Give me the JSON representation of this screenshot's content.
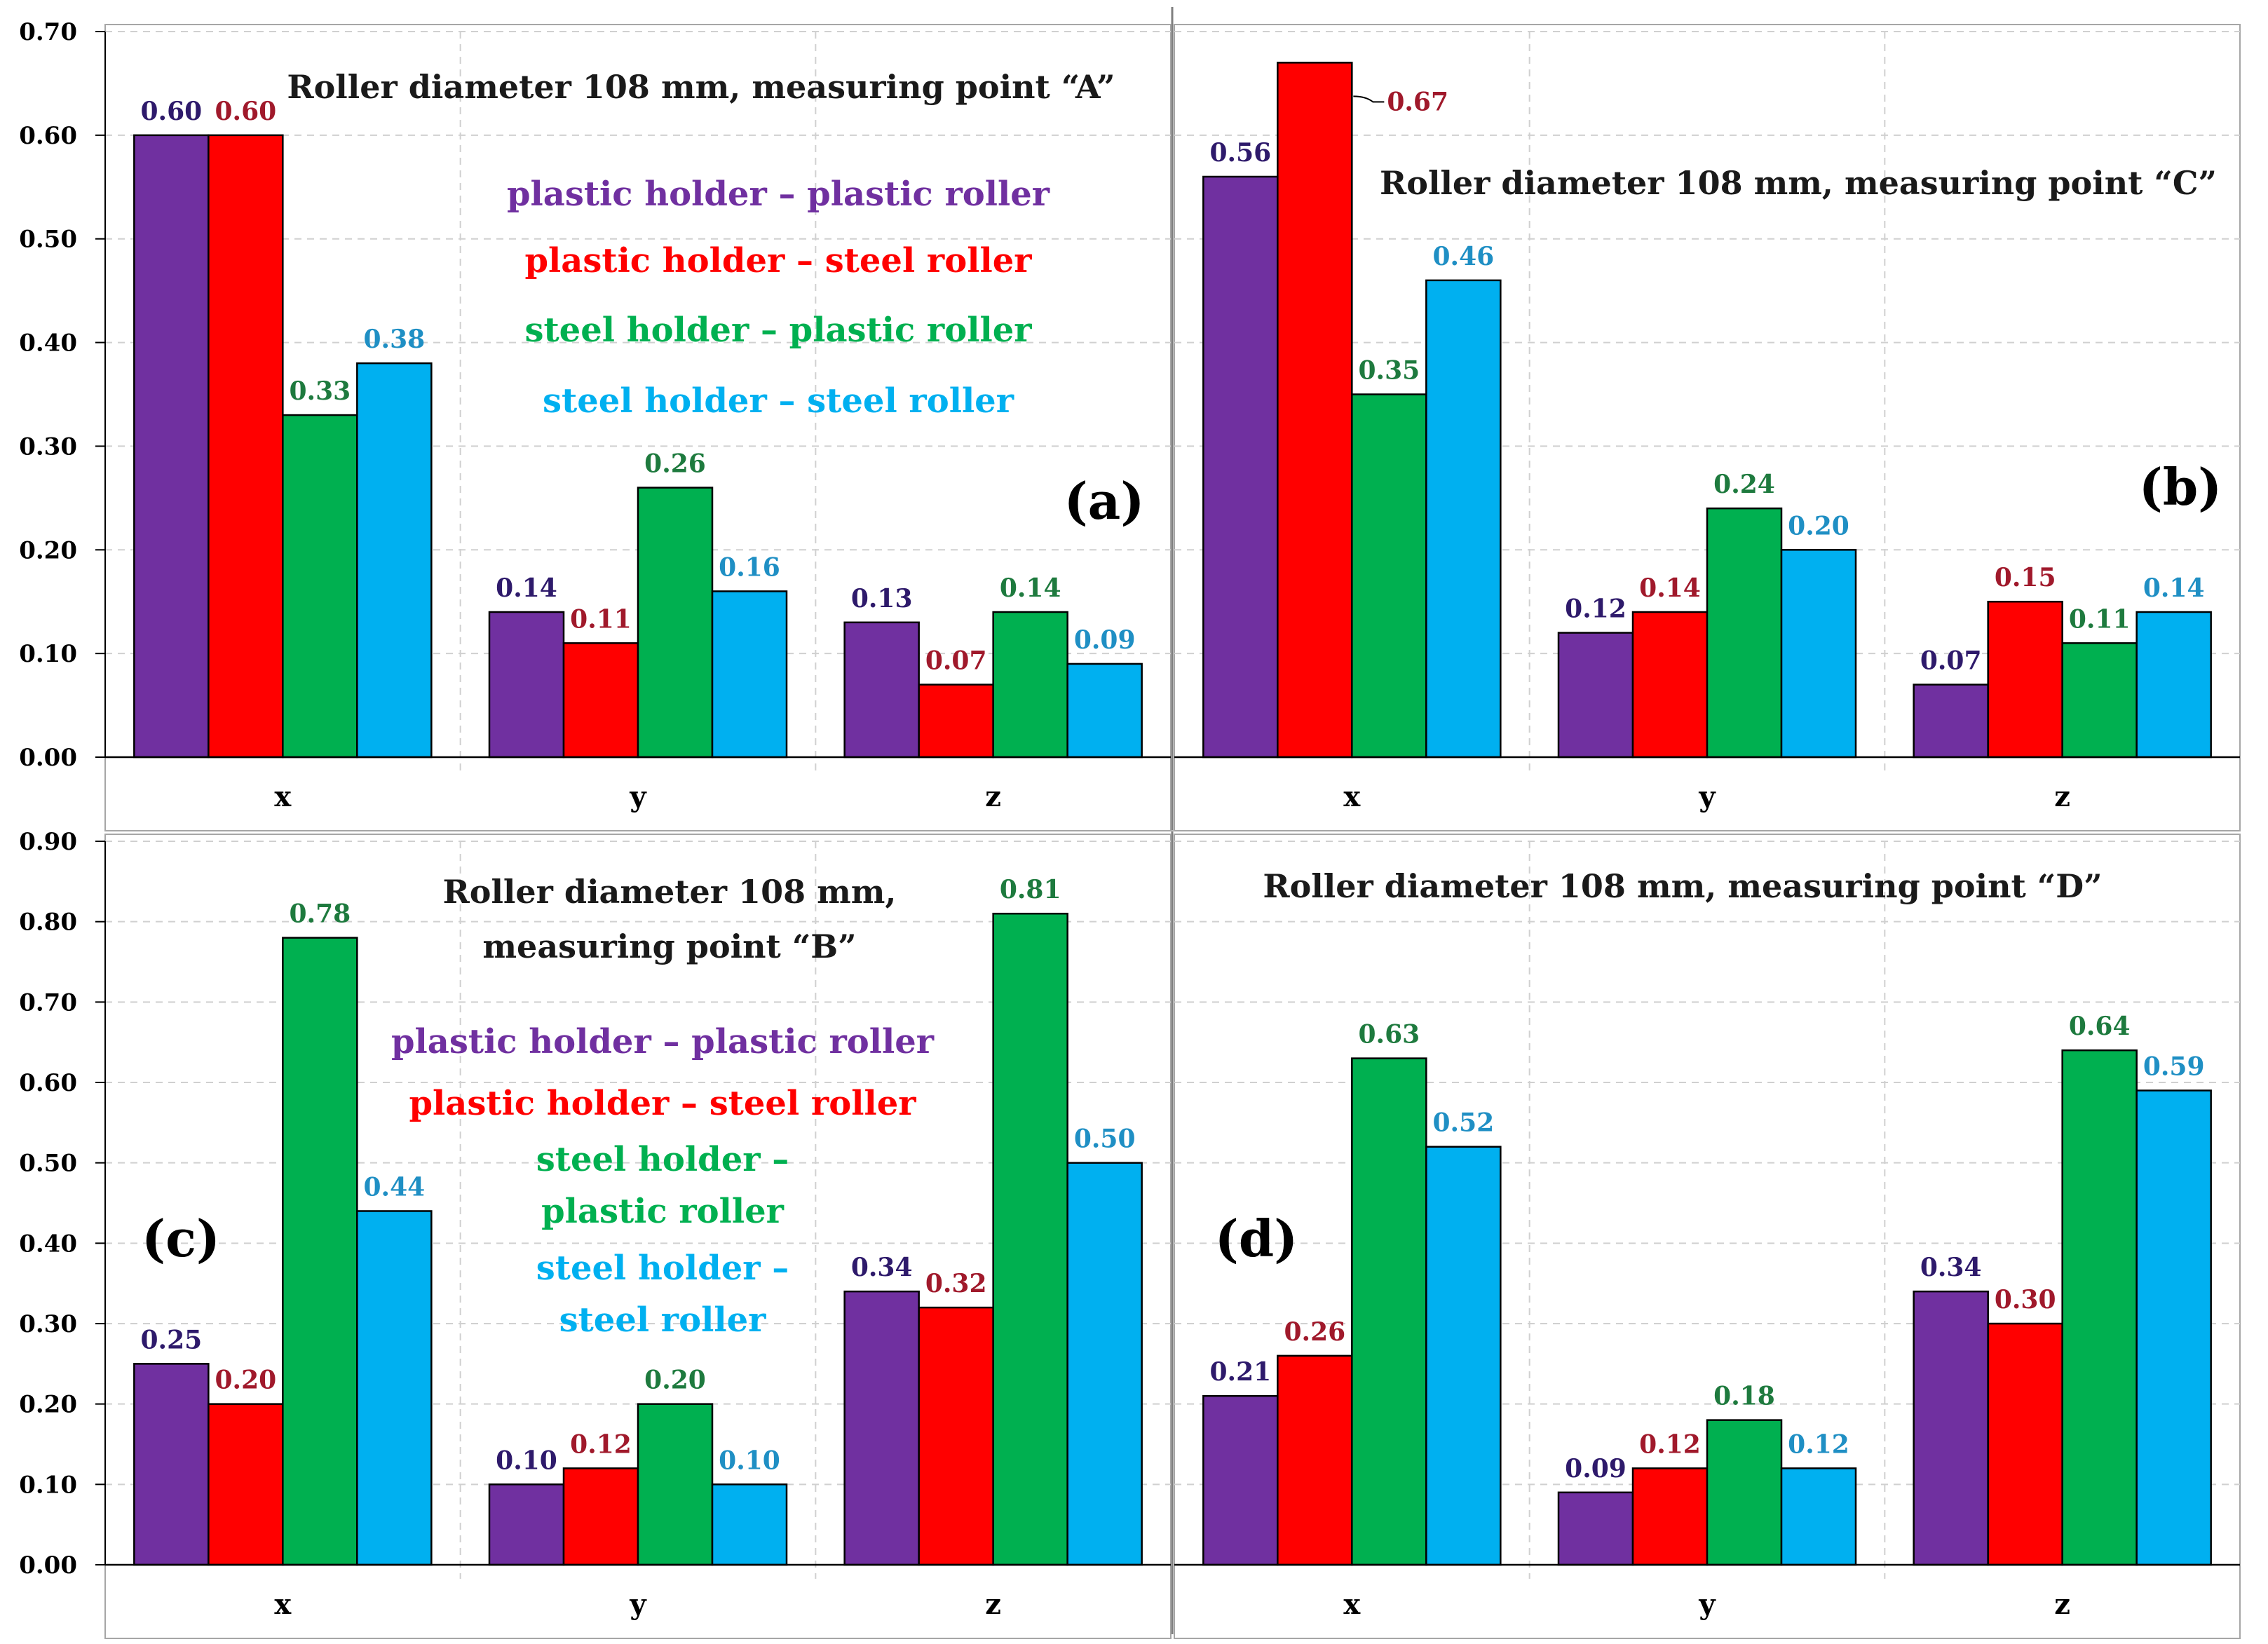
{
  "series_names": [
    "plastic holder – plastic roller",
    "plastic holder – steel roller",
    "steel holder – plastic roller",
    "steel holder – steel roller"
  ],
  "colors": {
    "fill": [
      "#7030A0",
      "#FF0000",
      "#00B050",
      "#00B0F0"
    ],
    "label": [
      "#2E1A6B",
      "#A0192B",
      "#1E7A3E",
      "#1F8FC4"
    ]
  },
  "chart_data": [
    {
      "type": "bar",
      "panel_label": "(a)",
      "title_lines": [
        "Roller diameter 108 mm, measuring point “A”"
      ],
      "categories": [
        "x",
        "y",
        "z"
      ],
      "ylim": [
        0,
        0.7
      ],
      "yticks": [
        "0.00",
        "0.10",
        "0.20",
        "0.30",
        "0.40",
        "0.50",
        "0.60",
        "0.70"
      ],
      "grid": true,
      "legend": "top-center",
      "legend_lines": [
        [
          "plastic holder – plastic roller"
        ],
        [
          "plastic holder – steel roller"
        ],
        [
          "steel holder – plastic roller"
        ],
        [
          "steel holder – steel roller"
        ]
      ],
      "series": [
        {
          "name": "plastic holder – plastic roller",
          "values": [
            0.6,
            0.14,
            0.13
          ],
          "labels": [
            "0.60",
            "0.14",
            "0.13"
          ]
        },
        {
          "name": "plastic holder – steel roller",
          "values": [
            0.6,
            0.11,
            0.07
          ],
          "labels": [
            "0.60",
            "0.11",
            "0.07"
          ]
        },
        {
          "name": "steel holder – plastic roller",
          "values": [
            0.33,
            0.26,
            0.14
          ],
          "labels": [
            "0.33",
            "0.26",
            "0.14"
          ]
        },
        {
          "name": "steel holder – steel roller",
          "values": [
            0.38,
            0.16,
            0.09
          ],
          "labels": [
            "0.38",
            "0.16",
            "0.09"
          ]
        }
      ]
    },
    {
      "type": "bar",
      "panel_label": "(b)",
      "title_lines": [
        "Roller diameter 108 mm, measuring point “C”"
      ],
      "categories": [
        "x",
        "y",
        "z"
      ],
      "ylim": [
        0,
        0.7
      ],
      "yticks": [],
      "grid": true,
      "legend_lines": [],
      "series": [
        {
          "name": "plastic holder – plastic roller",
          "values": [
            0.56,
            0.12,
            0.07
          ],
          "labels": [
            "0.56",
            "0.12",
            "0.07"
          ]
        },
        {
          "name": "plastic holder – steel roller",
          "values": [
            0.67,
            0.14,
            0.15
          ],
          "labels": [
            "0.67",
            "0.14",
            "0.15"
          ]
        },
        {
          "name": "steel holder – plastic roller",
          "values": [
            0.35,
            0.24,
            0.11
          ],
          "labels": [
            "0.35",
            "0.24",
            "0.11"
          ]
        },
        {
          "name": "steel holder – steel roller",
          "values": [
            0.46,
            0.2,
            0.14
          ],
          "labels": [
            "0.46",
            "0.20",
            "0.14"
          ]
        }
      ]
    },
    {
      "type": "bar",
      "panel_label": "(c)",
      "title_lines": [
        "Roller diameter 108 mm,",
        "measuring point “B”"
      ],
      "categories": [
        "x",
        "y",
        "z"
      ],
      "ylim": [
        0,
        0.9
      ],
      "yticks": [
        "0.00",
        "0.10",
        "0.20",
        "0.30",
        "0.40",
        "0.50",
        "0.60",
        "0.70",
        "0.80",
        "0.90"
      ],
      "grid": true,
      "legend": "center",
      "legend_lines": [
        [
          "plastic holder – plastic roller"
        ],
        [
          "plastic holder – steel roller"
        ],
        [
          "steel holder –",
          "plastic roller"
        ],
        [
          "steel holder –",
          "steel roller"
        ]
      ],
      "series": [
        {
          "name": "plastic holder – plastic roller",
          "values": [
            0.25,
            0.1,
            0.34
          ],
          "labels": [
            "0.25",
            "0.10",
            "0.34"
          ]
        },
        {
          "name": "plastic holder – steel roller",
          "values": [
            0.2,
            0.12,
            0.32
          ],
          "labels": [
            "0.20",
            "0.12",
            "0.32"
          ]
        },
        {
          "name": "steel holder – plastic roller",
          "values": [
            0.78,
            0.2,
            0.81
          ],
          "labels": [
            "0.78",
            "0.20",
            "0.81"
          ]
        },
        {
          "name": "steel holder – steel roller",
          "values": [
            0.44,
            0.1,
            0.5
          ],
          "labels": [
            "0.44",
            "0.10",
            "0.50"
          ]
        }
      ]
    },
    {
      "type": "bar",
      "panel_label": "(d)",
      "title_lines": [
        "Roller diameter 108 mm, measuring point “D”"
      ],
      "categories": [
        "x",
        "y",
        "z"
      ],
      "ylim": [
        0,
        0.9
      ],
      "yticks": [],
      "grid": true,
      "legend_lines": [],
      "series": [
        {
          "name": "plastic holder – plastic roller",
          "values": [
            0.21,
            0.09,
            0.34
          ],
          "labels": [
            "0.21",
            "0.09",
            "0.34"
          ]
        },
        {
          "name": "plastic holder – steel roller",
          "values": [
            0.26,
            0.12,
            0.3
          ],
          "labels": [
            "0.26",
            "0.12",
            "0.30"
          ]
        },
        {
          "name": "steel holder – plastic roller",
          "values": [
            0.63,
            0.18,
            0.64
          ],
          "labels": [
            "0.63",
            "0.18",
            "0.64"
          ]
        },
        {
          "name": "steel holder – steel roller",
          "values": [
            0.52,
            0.12,
            0.59
          ],
          "labels": [
            "0.52",
            "0.12",
            "0.59"
          ]
        }
      ]
    }
  ]
}
